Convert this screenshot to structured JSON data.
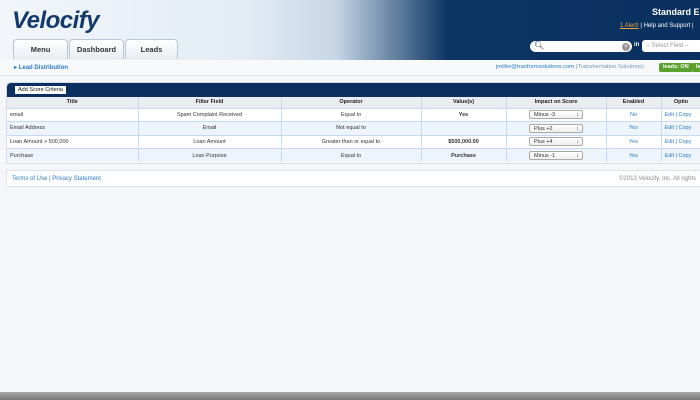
{
  "header": {
    "logo": "Velocify",
    "title": "Standard E",
    "alert": "1 Alert!",
    "help": "Help and Support",
    "search_placeholder": "",
    "in_label": "in",
    "select_field": "-- Select Field --"
  },
  "tabs": [
    {
      "label": "Menu"
    },
    {
      "label": "Dashboard"
    },
    {
      "label": "Leads"
    }
  ],
  "subbar": {
    "breadcrumb": "Lead Distribution",
    "user_email": "jmiller@tranformsolutions.com",
    "org": "(Transformation Solutions)",
    "leads_toggle": "leads: ON",
    "extra_pill": "le"
  },
  "panel": {
    "add_button": "Add Score Criteria"
  },
  "table": {
    "columns": [
      "Title",
      "Filter Field",
      "Operator",
      "Value(s)",
      "Impact on Score",
      "Enabled",
      "Optio"
    ],
    "rows": [
      {
        "title": "email",
        "field": "Spam Complaint Received",
        "operator": "Equal to",
        "value": "Yes",
        "impact": "Minus -3",
        "enabled": "No",
        "edit": "Edit",
        "copy": "Copy"
      },
      {
        "title": "Email Address",
        "field": "Email",
        "operator": "Not equal to",
        "value": "",
        "impact": "Plus +2",
        "enabled": "Yes",
        "edit": "Edit",
        "copy": "Copy"
      },
      {
        "title": "Loan Amount > 500,000",
        "field": "Loan Amount",
        "operator": "Greater than or equal to",
        "value": "$500,000.00",
        "impact": "Plus +4",
        "enabled": "Yes",
        "edit": "Edit",
        "copy": "Copy"
      },
      {
        "title": "Purchase",
        "field": "Loan Purpose",
        "operator": "Equal to",
        "value": "Purchase",
        "impact": "Minus -1",
        "enabled": "Yes",
        "edit": "Edit",
        "copy": "Copy"
      }
    ]
  },
  "footer": {
    "terms": "Terms of Use",
    "privacy": "Privacy Statement",
    "copyright": "©2013 Velocify, Inc. All rights"
  },
  "colors": {
    "navy": "#0b2f5e",
    "link": "#2a7bc4",
    "toggle": "#5aa02c",
    "alert": "#f2a33a"
  }
}
